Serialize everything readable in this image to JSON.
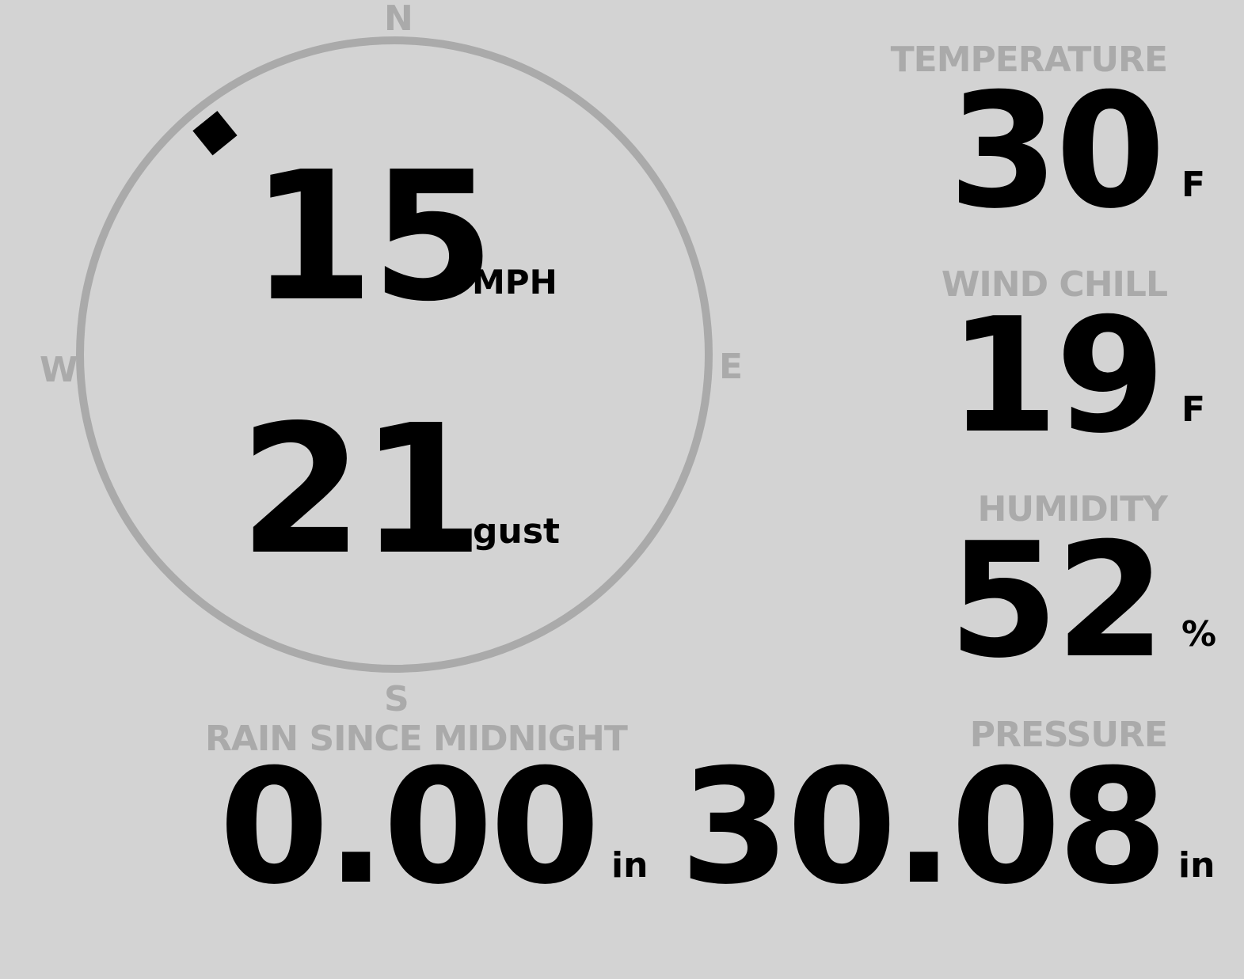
{
  "wind": {
    "speed": "15",
    "speed_unit": "MPH",
    "gust": "21",
    "gust_label": "gust",
    "direction_deg": 321,
    "compass": {
      "n": "N",
      "s": "S",
      "e": "E",
      "w": "W"
    }
  },
  "temperature": {
    "label": "TEMPERATURE",
    "value": "30",
    "unit": "F"
  },
  "wind_chill": {
    "label": "WIND CHILL",
    "value": "19",
    "unit": "F"
  },
  "humidity": {
    "label": "HUMIDITY",
    "value": "52",
    "unit": "%"
  },
  "rain": {
    "label": "RAIN SINCE MIDNIGHT",
    "value": "0.00",
    "unit": "in"
  },
  "pressure": {
    "label": "PRESSURE",
    "value": "30.08",
    "unit": "in"
  },
  "colors": {
    "background": "#d3d3d3",
    "label": "#aaaaaa",
    "value": "#000000"
  }
}
